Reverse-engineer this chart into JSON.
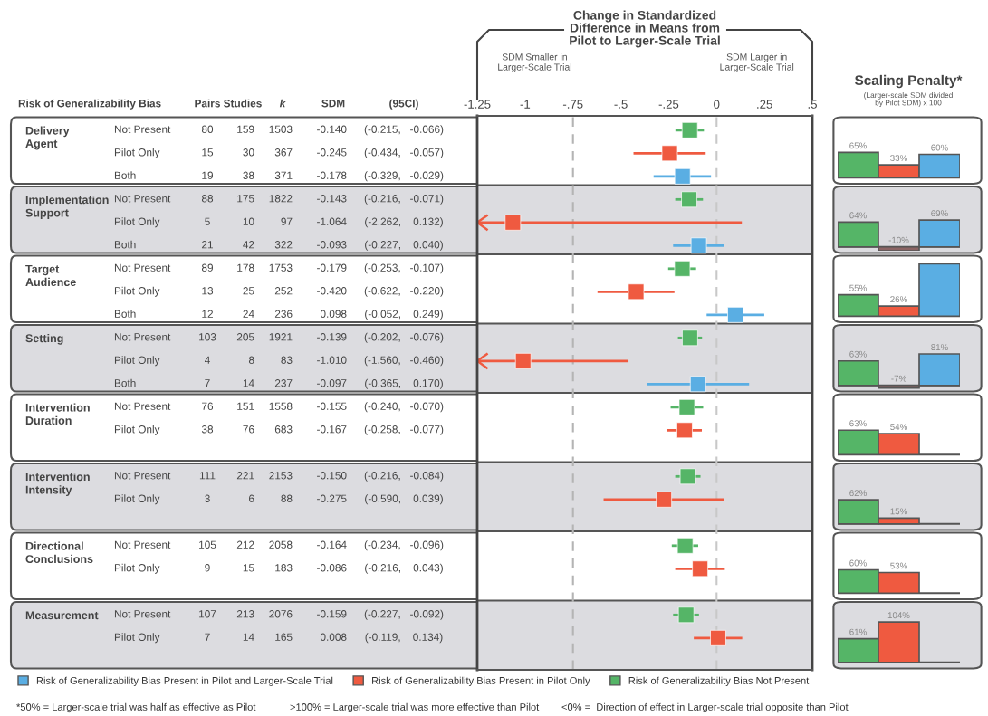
{
  "chart_data": [
    {
      "type": "other",
      "title": "Risk of Generalizability Bias",
      "categories": [
        "Pairs",
        "Studies",
        "k",
        "SDM",
        "(95CI)"
      ],
      "y_categories": [
        "Delivery\nAgent",
        null,
        null,
        "Implementation\nSupport",
        null,
        null,
        "Target\nAudience",
        null,
        null,
        "Setting",
        null,
        null,
        "Intervention\nDuration",
        null,
        null,
        "Intervention\nIntensity",
        null,
        null,
        "Directional\nConclusions",
        null,
        null,
        "Measurement",
        null,
        null
      ],
      "y2_categories": [
        "Not Present",
        "Pilot Only",
        "Both",
        "Not Present",
        "Pilot Only",
        "Both",
        "Not Present",
        "Pilot Only",
        "Both",
        "Not Present",
        "Pilot Only",
        "Both",
        "Not Present",
        "Pilot Only",
        null,
        "Not Present",
        "Pilot Only",
        null,
        "Not Present",
        "Pilot Only",
        null,
        "Not Present",
        "Pilot Only",
        null
      ],
      "cell_labels": [
        [
          "80",
          "159",
          "1503",
          "-0.140",
          "(-0.215,   -0.066)"
        ],
        [
          "15",
          "30",
          "367",
          "-0.245",
          "(-0.434,   -0.057)"
        ],
        [
          "19",
          "38",
          "371",
          "-0.178",
          "(-0.329,   -0.029)"
        ],
        [
          "88",
          "175",
          "1822",
          "-0.143",
          "(-0.216,   -0.071)"
        ],
        [
          "5",
          "10",
          "97",
          "-1.064",
          "(-2.262,    0.132)"
        ],
        [
          "21",
          "42",
          "322",
          "-0.093",
          "(-0.227,    0.040)"
        ],
        [
          "89",
          "178",
          "1753",
          "-0.179",
          "(-0.253,   -0.107)"
        ],
        [
          "13",
          "25",
          "252",
          "-0.420",
          "(-0.622,   -0.220)"
        ],
        [
          "12",
          "24",
          "236",
          "0.098",
          "(-0.052,    0.249)"
        ],
        [
          "103",
          "205",
          "1921",
          "-0.139",
          "(-0.202,   -0.076)"
        ],
        [
          "4",
          "8",
          "83",
          "-1.010",
          "(-1.560,   -0.460)"
        ],
        [
          "7",
          "14",
          "237",
          "-0.097",
          "(-0.365,    0.170)"
        ],
        [
          "76",
          "151",
          "1558",
          "-0.155",
          "(-0.240,   -0.070)"
        ],
        [
          "38",
          "76",
          "683",
          "-0.167",
          "(-0.258,   -0.077)"
        ],
        null,
        [
          "111",
          "221",
          "2153",
          "-0.150",
          "(-0.216,   -0.084)"
        ],
        [
          "3",
          "6",
          "88",
          "-0.275",
          "(-0.590,    0.039)"
        ],
        null,
        [
          "105",
          "212",
          "2058",
          "-0.164",
          "(-0.234,   -0.096)"
        ],
        [
          "9",
          "15",
          "183",
          "-0.086",
          "(-0.216,    0.043)"
        ],
        null,
        [
          "107",
          "213",
          "2076",
          "-0.159",
          "(-0.227,   -0.092)"
        ],
        [
          "7",
          "14",
          "165",
          "0.008",
          "(-0.119,    0.134)"
        ],
        null
      ],
      "annotations": [
        "*50% = Larger-scale trial was half as effective as Pilot",
        ">100% = Larger-scale trial was more effective than Pilot",
        "<0% =  Direction of effect in Larger-scale trial opposite than Pilot"
      ]
    },
    {
      "type": "scatter",
      "orientation": "horizontal",
      "title": "Change in Standardized\nDifference in Means from\nPilot to Larger-Scale Trial",
      "categories": [
        null,
        null,
        null,
        null,
        null,
        null,
        null,
        null,
        null,
        null,
        null,
        null,
        null,
        null,
        null,
        null,
        null,
        null,
        null,
        null,
        null,
        null,
        null,
        null
      ],
      "series": [
        {
          "name": "Risk of Generalizability Bias Present in Pilot and Larger-Scale Trial",
          "color": "#5aaee3",
          "values": [
            null,
            null,
            -0.178,
            null,
            null,
            -0.093,
            null,
            null,
            0.098,
            null,
            null,
            -0.097,
            null,
            null,
            null,
            null,
            null,
            null,
            null,
            null,
            null,
            null,
            null,
            null
          ],
          "errors": [
            null,
            null,
            [
              -0.329,
              -0.029
            ],
            null,
            null,
            [
              -0.227,
              0.04
            ],
            null,
            null,
            [
              -0.052,
              0.249
            ],
            null,
            null,
            [
              -0.365,
              0.17
            ],
            null,
            null,
            null,
            null,
            null,
            null,
            null,
            null,
            null,
            null,
            null,
            null
          ]
        },
        {
          "name": "Risk of Generalizability Bias Present in Pilot Only",
          "color": "#ef5a40",
          "values": [
            null,
            -0.245,
            null,
            null,
            -1.064,
            null,
            null,
            -0.42,
            null,
            null,
            -1.01,
            null,
            null,
            -0.167,
            null,
            null,
            -0.275,
            null,
            null,
            -0.086,
            null,
            null,
            0.008,
            null
          ],
          "errors": [
            null,
            [
              -0.434,
              -0.057
            ],
            null,
            null,
            [
              -2.262,
              0.132
            ],
            null,
            null,
            [
              -0.622,
              -0.22
            ],
            null,
            null,
            [
              -1.56,
              -0.46
            ],
            null,
            null,
            [
              -0.258,
              -0.077
            ],
            null,
            null,
            [
              -0.59,
              0.039
            ],
            null,
            null,
            [
              -0.216,
              0.043
            ],
            null,
            null,
            [
              -0.119,
              0.134
            ],
            null
          ]
        },
        {
          "name": "Risk of Generalizability Bias Not Present",
          "color": "#55b567",
          "values": [
            -0.14,
            null,
            null,
            -0.143,
            null,
            null,
            -0.179,
            null,
            null,
            -0.139,
            null,
            null,
            -0.155,
            null,
            null,
            -0.15,
            null,
            null,
            -0.164,
            null,
            null,
            -0.159,
            null,
            null
          ],
          "errors": [
            [
              -0.215,
              -0.066
            ],
            null,
            null,
            [
              -0.216,
              -0.071
            ],
            null,
            null,
            [
              -0.253,
              -0.107
            ],
            null,
            null,
            [
              -0.202,
              -0.076
            ],
            null,
            null,
            [
              -0.24,
              -0.07
            ],
            null,
            null,
            [
              -0.216,
              -0.084
            ],
            null,
            null,
            [
              -0.234,
              -0.096
            ],
            null,
            null,
            [
              -0.227,
              -0.092
            ],
            null,
            null
          ]
        }
      ],
      "xlim": [
        -1.25,
        0.5
      ],
      "xticks": [
        {
          "value": -1.25,
          "label": "-1.25"
        },
        -1,
        {
          "value": -0.75,
          "label": "-.75"
        },
        {
          "value": -0.5,
          "label": "-.5"
        },
        {
          "value": -0.25,
          "label": "-.25"
        },
        0,
        {
          "value": 0.25,
          "label": ".25"
        },
        {
          "value": 0.5,
          "label": ".5"
        }
      ],
      "ref_lines": [
        {
          "axis": "x",
          "value": -0.75,
          "color": "#b4b4b4",
          "line_style": "dashed"
        },
        {
          "axis": "x",
          "value": 0,
          "color": "#c8c8c8",
          "line_style": "dashed"
        }
      ],
      "annotations": [
        "SDM Smaller in\nLarger-Scale Trial",
        "SDM Larger in\nLarger-Scale Trial"
      ],
      "marker": "square",
      "legend": "bottom",
      "tick_labels": "x"
    },
    {
      "type": "bar",
      "title": "Scaling Penalty*",
      "subtitle": "(Larger-scale SDM divided\nby Pilot SDM) x 100",
      "categories": [
        null,
        null,
        null
      ],
      "values": [
        65,
        33,
        60
      ],
      "colors": [
        "#55b567",
        "#ef5a40",
        "#5aaee3"
      ],
      "value_labels": [
        "65%",
        "33%",
        "60%"
      ],
      "ylim": [
        -10,
        150
      ]
    },
    {
      "type": "bar",
      "categories": [
        null,
        null,
        null
      ],
      "values": [
        64,
        -10,
        69
      ],
      "colors": [
        "#55b567",
        "#8c6464",
        "#5aaee3"
      ],
      "value_labels": [
        "64%",
        "-10%",
        "69%"
      ],
      "ylim": [
        -10,
        150
      ]
    },
    {
      "type": "bar",
      "categories": [
        null,
        null,
        null
      ],
      "values": [
        55,
        26,
        135
      ],
      "colors": [
        "#55b567",
        "#ef5a40",
        "#5aaee3"
      ],
      "value_labels": [
        "55%",
        "26%",
        null
      ],
      "ylim": [
        -10,
        150
      ]
    },
    {
      "type": "bar",
      "categories": [
        null,
        null,
        null
      ],
      "values": [
        63,
        -7,
        81
      ],
      "colors": [
        "#55b567",
        "#8c6464",
        "#5aaee3"
      ],
      "value_labels": [
        "63%",
        "-7%",
        "81%"
      ],
      "ylim": [
        -10,
        150
      ]
    },
    {
      "type": "bar",
      "categories": [
        null,
        null,
        null
      ],
      "values": [
        63,
        54,
        null
      ],
      "colors": [
        "#55b567",
        "#ef5a40",
        null
      ],
      "value_labels": [
        "63%",
        "54%",
        null
      ],
      "ylim": [
        -10,
        150
      ]
    },
    {
      "type": "bar",
      "categories": [
        null,
        null,
        null
      ],
      "values": [
        62,
        15,
        null
      ],
      "colors": [
        "#55b567",
        "#ef5a40",
        null
      ],
      "value_labels": [
        "62%",
        "15%",
        null
      ],
      "ylim": [
        -10,
        150
      ]
    },
    {
      "type": "bar",
      "categories": [
        null,
        null,
        null
      ],
      "values": [
        60,
        53,
        null
      ],
      "colors": [
        "#55b567",
        "#ef5a40",
        null
      ],
      "value_labels": [
        "60%",
        "53%",
        null
      ],
      "ylim": [
        -10,
        150
      ]
    },
    {
      "type": "bar",
      "categories": [
        null,
        null,
        null
      ],
      "values": [
        61,
        104,
        null
      ],
      "colors": [
        "#55b567",
        "#ef5a40",
        null
      ],
      "value_labels": [
        "61%",
        "104%",
        null
      ],
      "ylim": [
        -10,
        150
      ]
    }
  ]
}
